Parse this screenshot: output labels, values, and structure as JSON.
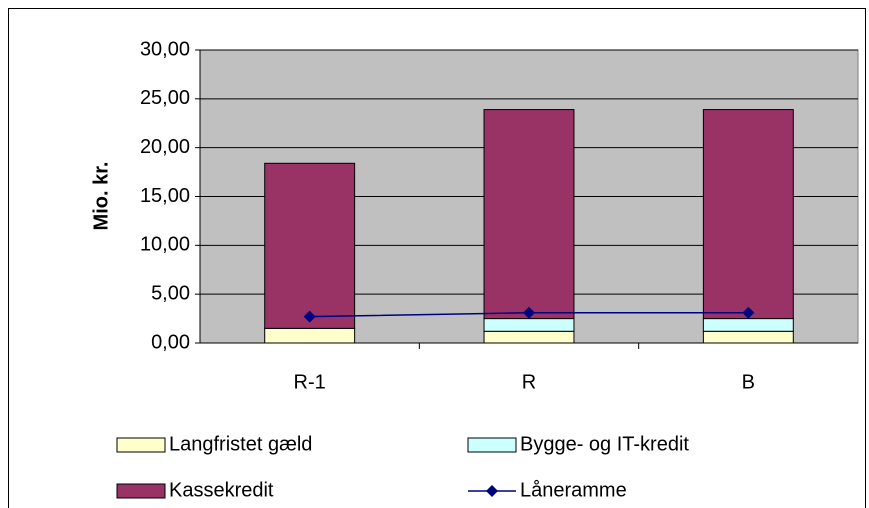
{
  "chart_data": {
    "type": "bar",
    "stacked": true,
    "y_label": "Mio. kr.",
    "categories": [
      "R-1",
      "R",
      "B"
    ],
    "series": [
      {
        "name": "Langfristet gæld",
        "color": "#ffffcc",
        "values": [
          1.5,
          1.2,
          1.2
        ]
      },
      {
        "name": "Bygge- og IT-kredit",
        "color": "#ccffff",
        "values": [
          0,
          1.3,
          1.3
        ]
      },
      {
        "name": "Kassekredit",
        "color": "#993366",
        "values": [
          16.9,
          21.4,
          21.4
        ]
      },
      {
        "name": "Låneramme",
        "color": "#000080",
        "type": "line",
        "values": [
          2.7,
          3.1,
          3.1
        ]
      }
    ],
    "ylim": [
      0,
      30
    ],
    "yticks": [
      {
        "value": 0,
        "label": "0,00"
      },
      {
        "value": 5,
        "label": "5,00"
      },
      {
        "value": 10,
        "label": "10,00"
      },
      {
        "value": 15,
        "label": "15,00"
      },
      {
        "value": 20,
        "label": "20,00"
      },
      {
        "value": 25,
        "label": "25,00"
      },
      {
        "value": 30,
        "label": "30,00"
      }
    ],
    "grid": true,
    "legend": "bottom"
  }
}
